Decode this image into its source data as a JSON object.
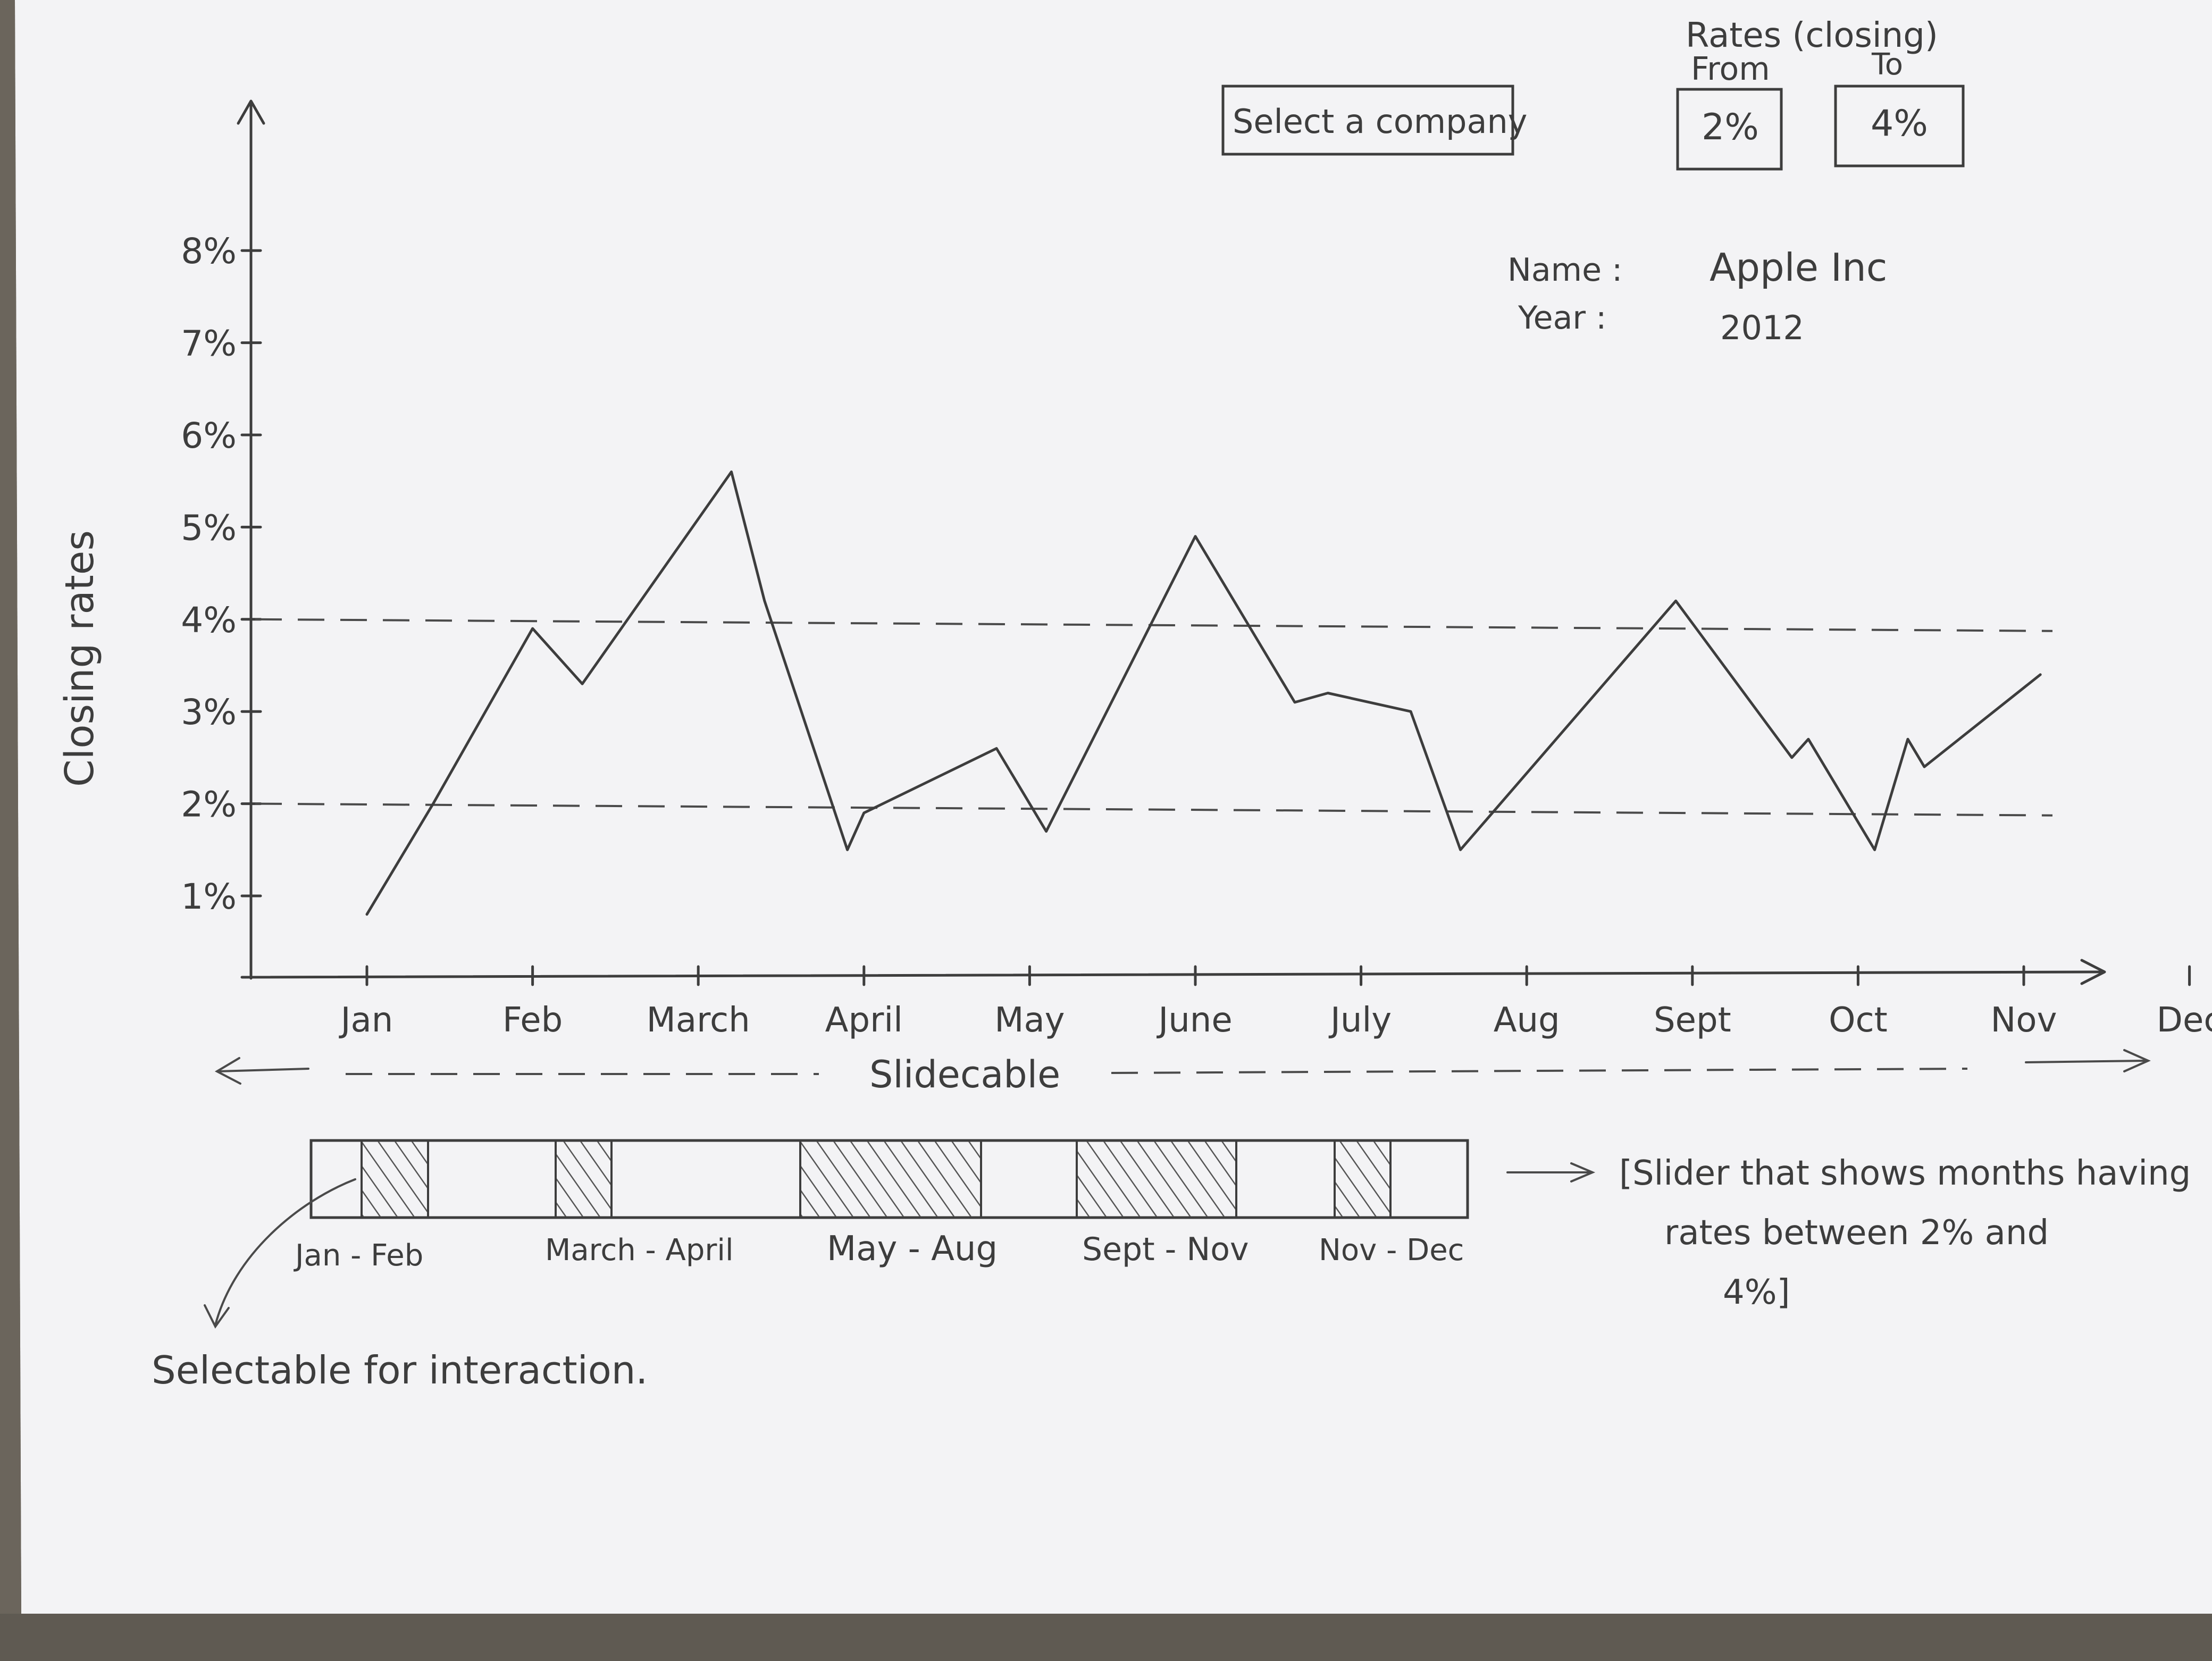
{
  "controls": {
    "company_select_label": "Select a company",
    "range_caption": "Rates (closing)",
    "from_label": "From",
    "to_label": "To",
    "from_value": "2%",
    "to_value": "4%"
  },
  "info": {
    "name_label": "Name :",
    "name_value": "Apple Inc",
    "year_label": "Year :",
    "year_value": "2012"
  },
  "chart_data": {
    "type": "line",
    "ylabel": "Closing rates",
    "xlabel": "",
    "ylim": [
      0.1,
      8.4
    ],
    "yticks": [
      {
        "value": 1,
        "label": "1%"
      },
      {
        "value": 2,
        "label": "2%"
      },
      {
        "value": 3,
        "label": "3%"
      },
      {
        "value": 4,
        "label": "4%"
      },
      {
        "value": 5,
        "label": "5%"
      },
      {
        "value": 6,
        "label": "6%"
      },
      {
        "value": 7,
        "label": "7%"
      },
      {
        "value": 8,
        "label": "8%"
      }
    ],
    "categories": [
      "Jan",
      "Feb",
      "March",
      "April",
      "May",
      "June",
      "July",
      "Aug",
      "Sept",
      "Oct",
      "Nov",
      "Dec"
    ],
    "thresholds": [
      2,
      4
    ],
    "series": [
      {
        "points": [
          [
            0,
            0.8
          ],
          [
            0.4,
            2.0
          ],
          [
            1,
            3.9
          ],
          [
            1.3,
            3.3
          ],
          [
            2.2,
            5.6
          ],
          [
            2.4,
            4.2
          ],
          [
            2.9,
            1.5
          ],
          [
            3.0,
            1.9
          ],
          [
            3.8,
            2.6
          ],
          [
            4.1,
            1.7
          ],
          [
            5.0,
            4.9
          ],
          [
            5.6,
            3.1
          ],
          [
            5.8,
            3.2
          ],
          [
            6.3,
            3.0
          ],
          [
            6.6,
            1.5
          ],
          [
            7.9,
            4.2
          ],
          [
            8.6,
            2.5
          ],
          [
            8.7,
            2.7
          ],
          [
            9.1,
            1.5
          ],
          [
            9.3,
            2.7
          ],
          [
            9.4,
            2.4
          ],
          [
            10.1,
            3.4
          ]
        ]
      }
    ]
  },
  "slider": {
    "caption": "Slidecable",
    "ranges": [
      "Jan - Feb",
      "March - April",
      "May - Aug",
      "Sept - Nov",
      "Nov - Dec"
    ],
    "description": "[Slider that shows months having rates between 2% and 4%]",
    "selectable_note": "Selectable for interaction."
  }
}
